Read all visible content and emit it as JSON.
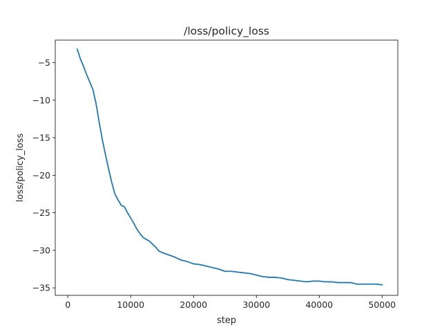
{
  "chart_data": {
    "type": "line",
    "title": "/loss/policy_loss",
    "xlabel": "step",
    "ylabel": "loss/policy_loss",
    "xlim": [
      -2000,
      52500
    ],
    "ylim": [
      -36.0,
      -2.0
    ],
    "xticks": [
      0,
      10000,
      20000,
      30000,
      40000,
      50000
    ],
    "xtick_labels": [
      "0",
      "10000",
      "20000",
      "30000",
      "40000",
      "50000"
    ],
    "yticks": [
      -35,
      -30,
      -25,
      -20,
      -15,
      -10,
      -5
    ],
    "ytick_labels": [
      "−35",
      "−30",
      "−25",
      "−20",
      "−15",
      "−10",
      "−5"
    ],
    "grid": false,
    "legend": "none",
    "series": [
      {
        "color": "#1f77b4",
        "x": [
          1500,
          2000,
          2500,
          3000,
          3500,
          4000,
          4500,
          5000,
          5500,
          6000,
          6500,
          7000,
          7500,
          8000,
          8500,
          9000,
          9500,
          10000,
          10500,
          11000,
          11500,
          12000,
          13000,
          14000,
          14500,
          15000,
          16000,
          17000,
          18000,
          19000,
          20000,
          21000,
          22000,
          23000,
          24000,
          25000,
          26000,
          27000,
          28000,
          29000,
          30000,
          31000,
          32000,
          33000,
          34000,
          35000,
          36000,
          37000,
          38000,
          39000,
          40000,
          41000,
          42000,
          43000,
          44000,
          45000,
          46000,
          47000,
          48000,
          49000,
          50000
        ],
        "y": [
          -3.2,
          -4.5,
          -5.5,
          -6.6,
          -7.6,
          -8.6,
          -10.5,
          -13.0,
          -15.3,
          -17.3,
          -19.2,
          -21.0,
          -22.5,
          -23.3,
          -24.0,
          -24.2,
          -25.0,
          -25.7,
          -26.4,
          -27.2,
          -27.8,
          -28.3,
          -28.8,
          -29.6,
          -30.1,
          -30.3,
          -30.6,
          -30.9,
          -31.3,
          -31.5,
          -31.8,
          -31.9,
          -32.1,
          -32.3,
          -32.5,
          -32.8,
          -32.8,
          -32.9,
          -33.0,
          -33.1,
          -33.3,
          -33.5,
          -33.6,
          -33.6,
          -33.7,
          -33.9,
          -34.0,
          -34.1,
          -34.2,
          -34.1,
          -34.1,
          -34.2,
          -34.2,
          -34.3,
          -34.3,
          -34.3,
          -34.5,
          -34.5,
          -34.5,
          -34.5,
          -34.6
        ]
      }
    ]
  }
}
